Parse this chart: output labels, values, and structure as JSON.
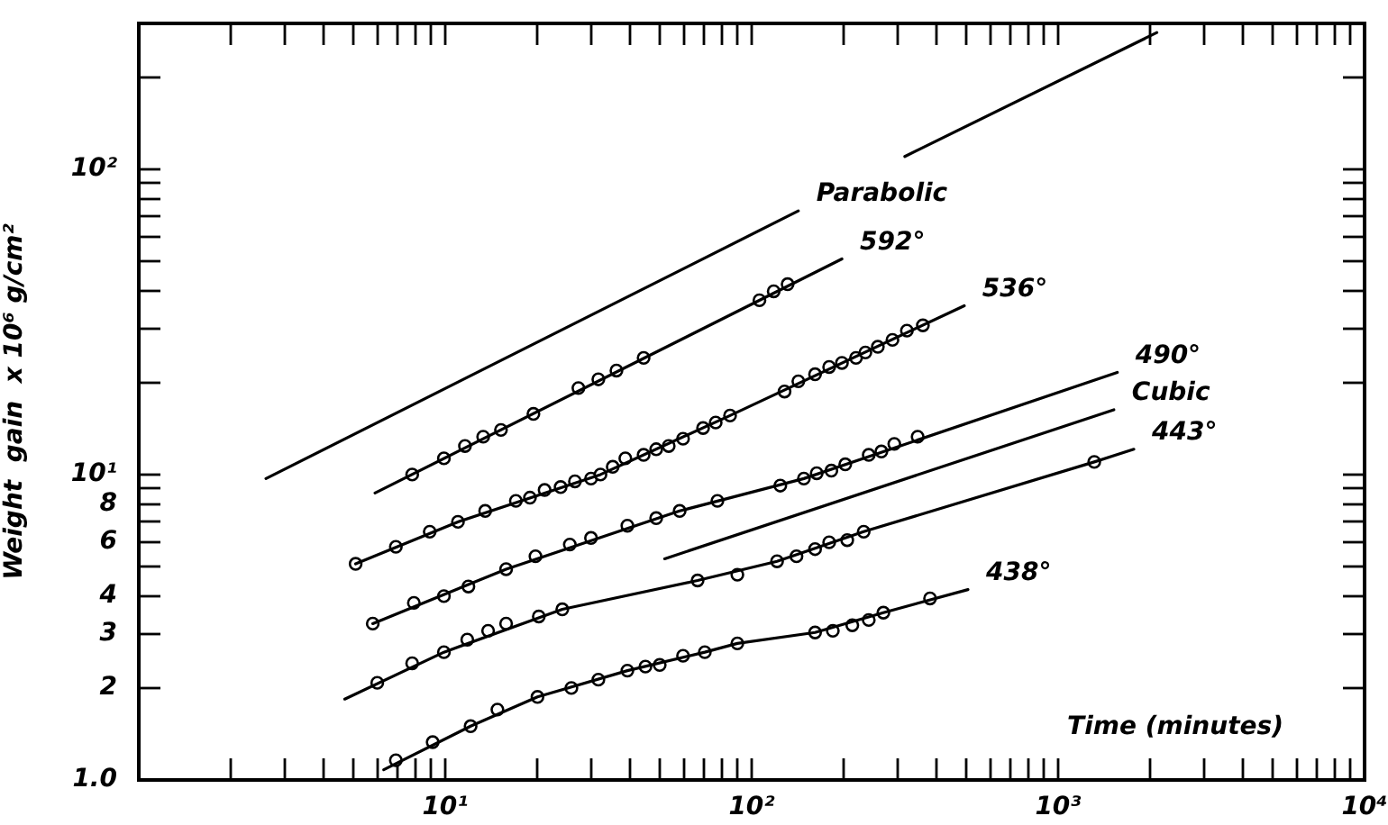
{
  "chart_data": {
    "type": "line",
    "xlabel": "Time (minutes)",
    "ylabel": "Weight  gain  x 10⁶ g/cm²",
    "log": "xy",
    "legend": false,
    "grid": false,
    "line_style": "solid",
    "xlim": [
      1,
      10000
    ],
    "ylim": [
      1,
      300
    ],
    "xticks": [
      {
        "value": 2,
        "label": null
      },
      {
        "value": 3,
        "label": null
      },
      {
        "value": 4,
        "label": null
      },
      {
        "value": 5,
        "label": null
      },
      {
        "value": 6,
        "label": null
      },
      {
        "value": 7,
        "label": null
      },
      {
        "value": 8,
        "label": null
      },
      {
        "value": 9,
        "label": null
      },
      {
        "value": 10,
        "label": "10¹"
      },
      {
        "value": 20,
        "label": null
      },
      {
        "value": 30,
        "label": null
      },
      {
        "value": 40,
        "label": null
      },
      {
        "value": 50,
        "label": null
      },
      {
        "value": 60,
        "label": null
      },
      {
        "value": 70,
        "label": null
      },
      {
        "value": 80,
        "label": null
      },
      {
        "value": 90,
        "label": null
      },
      {
        "value": 100,
        "label": "10²"
      },
      {
        "value": 200,
        "label": null
      },
      {
        "value": 300,
        "label": null
      },
      {
        "value": 400,
        "label": null
      },
      {
        "value": 500,
        "label": null
      },
      {
        "value": 600,
        "label": null
      },
      {
        "value": 700,
        "label": null
      },
      {
        "value": 800,
        "label": null
      },
      {
        "value": 900,
        "label": null
      },
      {
        "value": 1000,
        "label": "10³"
      },
      {
        "value": 2000,
        "label": null
      },
      {
        "value": 3000,
        "label": null
      },
      {
        "value": 4000,
        "label": null
      },
      {
        "value": 5000,
        "label": null
      },
      {
        "value": 6000,
        "label": null
      },
      {
        "value": 7000,
        "label": null
      },
      {
        "value": 8000,
        "label": null
      },
      {
        "value": 9000,
        "label": null
      },
      {
        "value": 10000,
        "label": "10⁴"
      }
    ],
    "yticks": [
      {
        "value": 1,
        "label": "1.0"
      },
      2,
      3,
      4,
      {
        "value": 5,
        "label": null
      },
      6,
      {
        "value": 7,
        "label": null
      },
      8,
      {
        "value": 9,
        "label": null
      },
      {
        "value": 10,
        "label": "10¹"
      },
      {
        "value": 20,
        "label": null
      },
      {
        "value": 30,
        "label": null
      },
      {
        "value": 40,
        "label": null
      },
      {
        "value": 50,
        "label": null
      },
      {
        "value": 60,
        "label": null
      },
      {
        "value": 70,
        "label": null
      },
      {
        "value": 80,
        "label": null
      },
      {
        "value": 90,
        "label": null
      },
      {
        "value": 100,
        "label": "10²"
      },
      {
        "value": 200,
        "label": null
      }
    ],
    "series": [
      {
        "name": "Parabolic",
        "color": "#000000",
        "marker": "none",
        "x": [
          2.6,
          142,
          200,
          316,
          2100
        ],
        "values": [
          9.7,
          73,
          null,
          110,
          280
        ]
      },
      {
        "name": "592°",
        "color": "#000000",
        "marker": "none",
        "x": [
          5.9,
          197
        ],
        "values": [
          8.7,
          50.8
        ]
      },
      {
        "type": "scatter",
        "color": "#000000",
        "marker": "circle",
        "x": [
          7.8,
          9.9,
          11.6,
          13.3,
          15.2,
          19.4,
          27.2,
          31.6,
          36.2,
          44.4,
          106,
          118,
          131
        ],
        "values": [
          10.0,
          11.3,
          12.4,
          13.3,
          14.0,
          15.8,
          19.2,
          20.5,
          21.9,
          24.1,
          37.2,
          39.8,
          42.0
        ]
      },
      {
        "name": "536°",
        "color": "#000000",
        "marker": "none",
        "x": [
          5.1,
          11.0,
          32.1,
          85,
          494
        ],
        "values": [
          5.1,
          7.0,
          10.0,
          15.6,
          35.7
        ]
      },
      {
        "type": "scatter",
        "color": "#000000",
        "marker": "circle",
        "x": [
          5.1,
          6.9,
          8.9,
          11.0,
          13.5,
          17.0,
          18.9,
          21.1,
          23.8,
          26.5,
          29.9,
          32.1,
          35.2,
          38.7,
          44.4,
          48.8,
          53.6,
          59.7,
          69.4,
          76.3,
          85,
          128,
          142,
          161,
          179,
          197,
          219,
          235,
          258,
          288,
          321,
          362
        ],
        "values": [
          5.1,
          5.8,
          6.5,
          7.0,
          7.6,
          8.2,
          8.4,
          8.9,
          9.1,
          9.5,
          9.7,
          10.0,
          10.6,
          11.3,
          11.6,
          12.1,
          12.4,
          13.1,
          14.2,
          14.8,
          15.6,
          18.7,
          20.2,
          21.3,
          22.5,
          23.2,
          24.1,
          25.1,
          26.2,
          27.6,
          29.6,
          30.8
        ]
      },
      {
        "name": "490°",
        "color": "#000000",
        "marker": "none",
        "x": [
          5.8,
          15.8,
          58.2,
          148,
          1560
        ],
        "values": [
          3.25,
          4.9,
          7.6,
          9.7,
          21.6
        ]
      },
      {
        "type": "scatter",
        "color": "#000000",
        "marker": "circle",
        "x": [
          5.8,
          7.9,
          9.9,
          11.9,
          15.8,
          19.7,
          25.5,
          29.9,
          39.3,
          48.8,
          58.2,
          77.3,
          124,
          148,
          163,
          182,
          202,
          241,
          265,
          292,
          348
        ],
        "values": [
          3.25,
          3.8,
          4.0,
          4.3,
          4.9,
          5.4,
          5.9,
          6.2,
          6.8,
          7.2,
          7.6,
          8.2,
          9.2,
          9.7,
          10.1,
          10.3,
          10.8,
          11.6,
          11.9,
          12.6,
          13.3
        ]
      },
      {
        "name": "Cubic",
        "color": "#000000",
        "marker": "none",
        "x": [
          52,
          1520
        ],
        "values": [
          5.3,
          16.3
        ]
      },
      {
        "name": "443°",
        "color": "#000000",
        "marker": "none",
        "x": [
          4.7,
          9.9,
          24.1,
          66.6,
          121,
          232,
          1312,
          1766
        ],
        "values": [
          1.84,
          2.62,
          3.62,
          4.5,
          5.2,
          6.5,
          11.0,
          12.1
        ]
      },
      {
        "type": "scatter",
        "color": "#000000",
        "marker": "circle",
        "x": [
          6.0,
          7.8,
          9.9,
          11.8,
          13.8,
          15.8,
          20.2,
          24.1,
          66.6,
          89.8,
          121,
          140,
          161,
          179,
          205,
          232,
          1312
        ],
        "values": [
          2.08,
          2.41,
          2.62,
          2.88,
          3.08,
          3.25,
          3.43,
          3.62,
          4.5,
          4.7,
          5.2,
          5.4,
          5.7,
          6.0,
          6.1,
          6.5,
          11.0
        ]
      },
      {
        "name": "438°",
        "color": "#000000",
        "marker": "none",
        "x": [
          6.3,
          12.1,
          20.0,
          39.3,
          70.3,
          89.8,
          161,
          269,
          508
        ],
        "values": [
          1.08,
          1.5,
          1.87,
          2.28,
          2.62,
          2.8,
          3.04,
          3.53,
          4.2
        ]
      },
      {
        "type": "scatter",
        "color": "#000000",
        "marker": "circle",
        "x": [
          6.9,
          9.1,
          12.1,
          14.8,
          20.0,
          25.8,
          31.6,
          39.3,
          45.0,
          50.1,
          59.7,
          70.3,
          89.8,
          161,
          184,
          213,
          241,
          269,
          382
        ],
        "values": [
          1.16,
          1.33,
          1.5,
          1.7,
          1.87,
          2.0,
          2.13,
          2.28,
          2.35,
          2.38,
          2.55,
          2.62,
          2.8,
          3.04,
          3.08,
          3.21,
          3.34,
          3.53,
          3.93
        ]
      }
    ]
  }
}
